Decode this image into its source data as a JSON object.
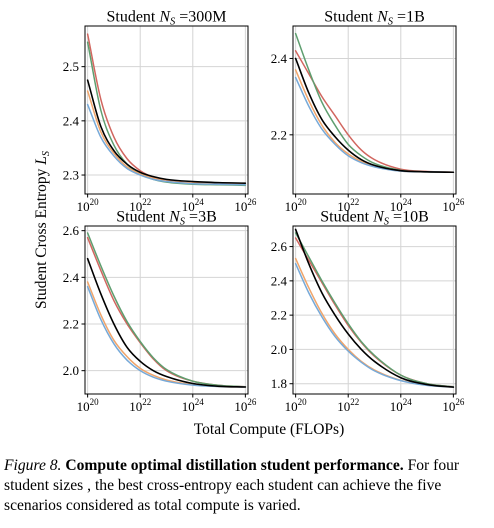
{
  "figure": {
    "y_axis_title": "Student Cross Entropy L_S",
    "x_axis_title": "Total Compute (FLOPs)"
  },
  "caption": {
    "label": "Figure 8.",
    "title": "Compute optimal distillation student performance.",
    "text": "For four student sizes , the best cross-entropy each student can achieve the five scenarios considered as total compute is varied."
  },
  "series_colors": [
    "#000000",
    "#d1665f",
    "#5e9e6f",
    "#f0a56b",
    "#76a9d8"
  ],
  "chart_data": [
    {
      "type": "line",
      "title_prefix": "Student ",
      "title_sub": "S",
      "title_value": " =300M",
      "xscale": "log",
      "xlim_exp": [
        19.9,
        26.1
      ],
      "ylim": [
        2.265,
        2.575
      ],
      "yticks": [
        2.3,
        2.4,
        2.5
      ],
      "ytick_labels": [
        "2.3",
        "2.4",
        "2.5"
      ],
      "xtick_exps": [
        20,
        22,
        24,
        26
      ],
      "series": [
        {
          "values": [
            [
              20.0,
              2.475
            ],
            [
              20.5,
              2.39
            ],
            [
              21.0,
              2.345
            ],
            [
              21.5,
              2.32
            ],
            [
              22.0,
              2.305
            ],
            [
              22.5,
              2.297
            ],
            [
              23.0,
              2.292
            ],
            [
              24.0,
              2.288
            ],
            [
              25.0,
              2.286
            ],
            [
              26.0,
              2.285
            ]
          ]
        },
        {
          "values": [
            [
              20.0,
              2.56
            ],
            [
              20.5,
              2.44
            ],
            [
              21.0,
              2.37
            ],
            [
              21.5,
              2.33
            ],
            [
              22.0,
              2.308
            ],
            [
              22.5,
              2.296
            ],
            [
              23.0,
              2.29
            ],
            [
              24.0,
              2.285
            ],
            [
              25.0,
              2.283
            ],
            [
              26.0,
              2.282
            ]
          ]
        },
        {
          "values": [
            [
              20.0,
              2.545
            ],
            [
              20.5,
              2.42
            ],
            [
              21.0,
              2.355
            ],
            [
              21.5,
              2.32
            ],
            [
              22.0,
              2.302
            ],
            [
              22.5,
              2.292
            ],
            [
              23.0,
              2.287
            ],
            [
              24.0,
              2.283
            ],
            [
              25.0,
              2.282
            ],
            [
              26.0,
              2.281
            ]
          ]
        },
        {
          "values": [
            [
              20.0,
              2.455
            ],
            [
              20.5,
              2.38
            ],
            [
              21.0,
              2.34
            ],
            [
              21.5,
              2.315
            ],
            [
              22.0,
              2.302
            ],
            [
              22.5,
              2.294
            ],
            [
              23.0,
              2.289
            ],
            [
              24.0,
              2.285
            ],
            [
              25.0,
              2.284
            ],
            [
              26.0,
              2.283
            ]
          ]
        },
        {
          "values": [
            [
              20.0,
              2.43
            ],
            [
              20.5,
              2.37
            ],
            [
              21.0,
              2.335
            ],
            [
              21.5,
              2.312
            ],
            [
              22.0,
              2.3
            ],
            [
              22.5,
              2.292
            ],
            [
              23.0,
              2.288
            ],
            [
              24.0,
              2.284
            ],
            [
              25.0,
              2.283
            ],
            [
              26.0,
              2.282
            ]
          ]
        }
      ]
    },
    {
      "type": "line",
      "title_prefix": "Student ",
      "title_sub": "S",
      "title_value": " =1B",
      "xscale": "log",
      "xlim_exp": [
        19.9,
        26.1
      ],
      "ylim": [
        2.045,
        2.485
      ],
      "yticks": [
        2.2,
        2.4
      ],
      "ytick_labels": [
        "2.2",
        "2.4"
      ],
      "xtick_exps": [
        20,
        22,
        24,
        26
      ],
      "series": [
        {
          "values": [
            [
              20.0,
              2.4
            ],
            [
              20.5,
              2.31
            ],
            [
              21.0,
              2.24
            ],
            [
              21.5,
              2.195
            ],
            [
              22.0,
              2.16
            ],
            [
              22.5,
              2.135
            ],
            [
              23.0,
              2.12
            ],
            [
              24.0,
              2.106
            ],
            [
              25.0,
              2.103
            ],
            [
              26.0,
              2.102
            ]
          ]
        },
        {
          "values": [
            [
              20.0,
              2.42
            ],
            [
              20.5,
              2.36
            ],
            [
              21.0,
              2.3
            ],
            [
              21.5,
              2.25
            ],
            [
              22.0,
              2.2
            ],
            [
              22.5,
              2.16
            ],
            [
              23.0,
              2.135
            ],
            [
              24.0,
              2.11
            ],
            [
              25.0,
              2.104
            ],
            [
              26.0,
              2.102
            ]
          ]
        },
        {
          "values": [
            [
              20.0,
              2.465
            ],
            [
              20.5,
              2.37
            ],
            [
              21.0,
              2.285
            ],
            [
              21.5,
              2.225
            ],
            [
              22.0,
              2.175
            ],
            [
              22.5,
              2.145
            ],
            [
              23.0,
              2.125
            ],
            [
              24.0,
              2.107
            ],
            [
              25.0,
              2.103
            ],
            [
              26.0,
              2.102
            ]
          ]
        },
        {
          "values": [
            [
              20.0,
              2.37
            ],
            [
              20.5,
              2.29
            ],
            [
              21.0,
              2.225
            ],
            [
              21.5,
              2.18
            ],
            [
              22.0,
              2.15
            ],
            [
              22.5,
              2.13
            ],
            [
              23.0,
              2.117
            ],
            [
              24.0,
              2.105
            ],
            [
              25.0,
              2.103
            ],
            [
              26.0,
              2.102
            ]
          ]
        },
        {
          "values": [
            [
              20.0,
              2.35
            ],
            [
              20.5,
              2.275
            ],
            [
              21.0,
              2.215
            ],
            [
              21.5,
              2.175
            ],
            [
              22.0,
              2.145
            ],
            [
              22.5,
              2.127
            ],
            [
              23.0,
              2.116
            ],
            [
              24.0,
              2.105
            ],
            [
              25.0,
              2.103
            ],
            [
              26.0,
              2.102
            ]
          ]
        }
      ]
    },
    {
      "type": "line",
      "title_prefix": "Student ",
      "title_sub": "S",
      "title_value": " =3B",
      "xscale": "log",
      "xlim_exp": [
        19.9,
        26.1
      ],
      "ylim": [
        1.9,
        2.62
      ],
      "yticks": [
        2.0,
        2.2,
        2.4,
        2.6
      ],
      "ytick_labels": [
        "2.0",
        "2.2",
        "2.4",
        "2.6"
      ],
      "xtick_exps": [
        20,
        22,
        24,
        26
      ],
      "series": [
        {
          "values": [
            [
              20.0,
              2.48
            ],
            [
              20.5,
              2.33
            ],
            [
              21.0,
              2.2
            ],
            [
              21.5,
              2.1
            ],
            [
              22.0,
              2.04
            ],
            [
              22.5,
              2.0
            ],
            [
              23.0,
              1.975
            ],
            [
              24.0,
              1.945
            ],
            [
              25.0,
              1.933
            ],
            [
              26.0,
              1.93
            ]
          ]
        },
        {
          "values": [
            [
              20.0,
              2.57
            ],
            [
              20.5,
              2.43
            ],
            [
              21.0,
              2.3
            ],
            [
              21.5,
              2.2
            ],
            [
              22.0,
              2.12
            ],
            [
              22.5,
              2.05
            ],
            [
              23.0,
              2.0
            ],
            [
              24.0,
              1.955
            ],
            [
              25.0,
              1.937
            ],
            [
              26.0,
              1.931
            ]
          ]
        },
        {
          "values": [
            [
              20.0,
              2.59
            ],
            [
              20.5,
              2.45
            ],
            [
              21.0,
              2.32
            ],
            [
              21.5,
              2.21
            ],
            [
              22.0,
              2.125
            ],
            [
              22.5,
              2.055
            ],
            [
              23.0,
              2.005
            ],
            [
              24.0,
              1.955
            ],
            [
              25.0,
              1.937
            ],
            [
              26.0,
              1.931
            ]
          ]
        },
        {
          "values": [
            [
              20.0,
              2.38
            ],
            [
              20.5,
              2.24
            ],
            [
              21.0,
              2.13
            ],
            [
              21.5,
              2.06
            ],
            [
              22.0,
              2.01
            ],
            [
              22.5,
              1.98
            ],
            [
              23.0,
              1.96
            ],
            [
              24.0,
              1.94
            ],
            [
              25.0,
              1.932
            ],
            [
              26.0,
              1.93
            ]
          ]
        },
        {
          "values": [
            [
              20.0,
              2.36
            ],
            [
              20.5,
              2.22
            ],
            [
              21.0,
              2.115
            ],
            [
              21.5,
              2.045
            ],
            [
              22.0,
              2.0
            ],
            [
              22.5,
              1.972
            ],
            [
              23.0,
              1.955
            ],
            [
              24.0,
              1.938
            ],
            [
              25.0,
              1.932
            ],
            [
              26.0,
              1.93
            ]
          ]
        }
      ]
    },
    {
      "type": "line",
      "title_prefix": "Student ",
      "title_sub": "S",
      "title_value": " =10B",
      "xscale": "log",
      "xlim_exp": [
        19.9,
        26.1
      ],
      "ylim": [
        1.74,
        2.72
      ],
      "yticks": [
        1.8,
        2.0,
        2.2,
        2.4,
        2.6
      ],
      "ytick_labels": [
        "1.8",
        "2.0",
        "2.2",
        "2.4",
        "2.6"
      ],
      "xtick_exps": [
        20,
        22,
        24,
        26
      ],
      "series": [
        {
          "values": [
            [
              20.0,
              2.7
            ],
            [
              20.5,
              2.5
            ],
            [
              21.0,
              2.33
            ],
            [
              21.5,
              2.2
            ],
            [
              22.0,
              2.09
            ],
            [
              22.5,
              2.0
            ],
            [
              23.0,
              1.93
            ],
            [
              24.0,
              1.835
            ],
            [
              25.0,
              1.795
            ],
            [
              26.0,
              1.78
            ]
          ]
        },
        {
          "values": [
            [
              20.0,
              2.65
            ],
            [
              20.5,
              2.52
            ],
            [
              21.0,
              2.39
            ],
            [
              21.5,
              2.26
            ],
            [
              22.0,
              2.14
            ],
            [
              22.5,
              2.04
            ],
            [
              23.0,
              1.96
            ],
            [
              24.0,
              1.85
            ],
            [
              25.0,
              1.8
            ],
            [
              26.0,
              1.782
            ]
          ]
        },
        {
          "values": [
            [
              20.0,
              2.68
            ],
            [
              20.5,
              2.54
            ],
            [
              21.0,
              2.4
            ],
            [
              21.5,
              2.27
            ],
            [
              22.0,
              2.15
            ],
            [
              22.5,
              2.045
            ],
            [
              23.0,
              1.965
            ],
            [
              24.0,
              1.85
            ],
            [
              25.0,
              1.8
            ],
            [
              26.0,
              1.782
            ]
          ]
        },
        {
          "values": [
            [
              20.0,
              2.53
            ],
            [
              20.5,
              2.36
            ],
            [
              21.0,
              2.21
            ],
            [
              21.5,
              2.09
            ],
            [
              22.0,
              2.0
            ],
            [
              22.5,
              1.93
            ],
            [
              23.0,
              1.88
            ],
            [
              24.0,
              1.82
            ],
            [
              25.0,
              1.792
            ],
            [
              26.0,
              1.78
            ]
          ]
        },
        {
          "values": [
            [
              20.0,
              2.5
            ],
            [
              20.5,
              2.33
            ],
            [
              21.0,
              2.19
            ],
            [
              21.5,
              2.075
            ],
            [
              22.0,
              1.99
            ],
            [
              22.5,
              1.925
            ],
            [
              23.0,
              1.875
            ],
            [
              24.0,
              1.818
            ],
            [
              25.0,
              1.79
            ],
            [
              26.0,
              1.78
            ]
          ]
        }
      ]
    }
  ]
}
